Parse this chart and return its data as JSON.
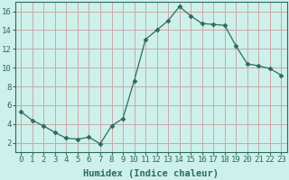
{
  "x": [
    0,
    1,
    2,
    3,
    4,
    5,
    6,
    7,
    8,
    9,
    10,
    11,
    12,
    13,
    14,
    15,
    16,
    17,
    18,
    19,
    20,
    21,
    22,
    23
  ],
  "y": [
    5.3,
    4.4,
    3.8,
    3.1,
    2.5,
    2.4,
    2.6,
    1.9,
    3.8,
    4.6,
    8.6,
    13.0,
    14.0,
    15.0,
    16.5,
    15.5,
    14.7,
    14.6,
    14.5,
    12.3,
    10.4,
    10.2,
    9.9,
    9.2
  ],
  "line_color": "#2d6b5e",
  "marker": "D",
  "marker_size": 2.5,
  "bg_color": "#cef0ea",
  "grid_color": "#c8a8a8",
  "xlabel": "Humidex (Indice chaleur)",
  "xlim": [
    -0.5,
    23.5
  ],
  "ylim": [
    1.0,
    17.0
  ],
  "yticks": [
    2,
    4,
    6,
    8,
    10,
    12,
    14,
    16
  ],
  "xticks": [
    0,
    1,
    2,
    3,
    4,
    5,
    6,
    7,
    8,
    9,
    10,
    11,
    12,
    13,
    14,
    15,
    16,
    17,
    18,
    19,
    20,
    21,
    22,
    23
  ],
  "xtick_labels": [
    "0",
    "1",
    "2",
    "3",
    "4",
    "5",
    "6",
    "7",
    "8",
    "9",
    "10",
    "11",
    "12",
    "13",
    "14",
    "15",
    "16",
    "17",
    "18",
    "19",
    "20",
    "21",
    "22",
    "23"
  ],
  "tick_fontsize": 6.5,
  "label_fontsize": 7.5
}
